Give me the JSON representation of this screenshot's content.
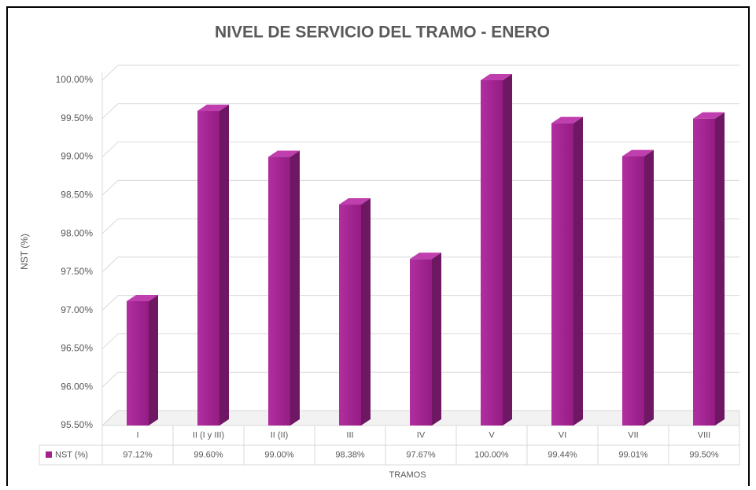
{
  "chart_data": {
    "type": "bar3d",
    "title": "NIVEL DE SERVICIO DEL TRAMO - ENERO",
    "y_label": "NST (%)",
    "x_label": "TRAMOS",
    "categories": [
      "I",
      "II (I y III)",
      "II (II)",
      "III",
      "IV",
      "V",
      "VI",
      "VII",
      "VIII"
    ],
    "series": [
      {
        "name": "NST (%)",
        "color": "#a3208f",
        "values": [
          97.12,
          99.6,
          99.0,
          98.38,
          97.67,
          100.0,
          99.44,
          99.01,
          99.5
        ],
        "value_labels": [
          "97.12%",
          "99.60%",
          "99.00%",
          "98.38%",
          "97.67%",
          "100.00%",
          "99.44%",
          "99.01%",
          "99.50%"
        ]
      }
    ],
    "ylim": [
      95.5,
      100
    ],
    "yticks": [
      {
        "value": 95.5,
        "label": "95.50%"
      },
      {
        "value": 96,
        "label": "96.00%"
      },
      {
        "value": 96.5,
        "label": "96.50%"
      },
      {
        "value": 97,
        "label": "97.00%"
      },
      {
        "value": 97.5,
        "label": "97.50%"
      },
      {
        "value": 98,
        "label": "98.00%"
      },
      {
        "value": 98.5,
        "label": "98.50%"
      },
      {
        "value": 99,
        "label": "99.00%"
      },
      {
        "value": 99.5,
        "label": "99.50%"
      },
      {
        "value": 100,
        "label": "100.00%"
      }
    ],
    "grid": true,
    "data_table": true
  }
}
